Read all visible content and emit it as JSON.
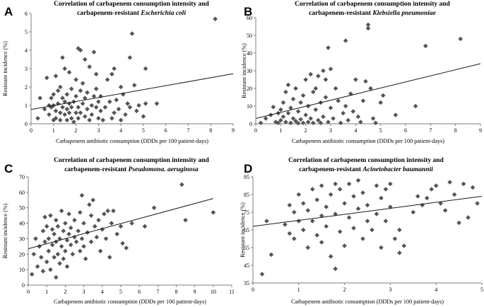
{
  "figure": {
    "colors": {
      "axis": "#7f7f7f",
      "marker": "#555555",
      "trend": "#1a1a1a"
    },
    "marker_shape": "diamond"
  },
  "chart_data": [
    {
      "panel": "A",
      "type": "scatter",
      "title_line1": "Correlation of carbapenem consumption intensity and",
      "title_line2_prefix": "carbapenem-resistant ",
      "title_line2_organism": "Escherichia coli",
      "xlabel": "Carbapenem antibiotic consumption (DDDs per 100 patient-days)",
      "ylabel": "Resistant incidence (%)",
      "xlim": [
        0,
        9
      ],
      "ylim": [
        0,
        6
      ],
      "xticks": [
        0,
        1,
        2,
        3,
        4,
        5,
        6,
        7,
        8,
        9
      ],
      "yticks": [
        0,
        1,
        2,
        3,
        4,
        5,
        6
      ],
      "trendline": [
        [
          0,
          0.78
        ],
        [
          9,
          2.72
        ]
      ],
      "points": [
        [
          0.3,
          0.3
        ],
        [
          0.4,
          1.4
        ],
        [
          0.6,
          0.8
        ],
        [
          0.7,
          2.5
        ],
        [
          0.8,
          1.0
        ],
        [
          0.8,
          0.5
        ],
        [
          0.9,
          1.4
        ],
        [
          0.9,
          0.9
        ],
        [
          1.0,
          0.2
        ],
        [
          1.0,
          1.0
        ],
        [
          1.0,
          1.6
        ],
        [
          1.1,
          0.7
        ],
        [
          1.1,
          2.6
        ],
        [
          1.1,
          0.3
        ],
        [
          1.2,
          1.8
        ],
        [
          1.2,
          1.1
        ],
        [
          1.3,
          0.6
        ],
        [
          1.3,
          2.0
        ],
        [
          1.3,
          0.2
        ],
        [
          1.4,
          3.6
        ],
        [
          1.4,
          1.4
        ],
        [
          1.4,
          0.9
        ],
        [
          1.5,
          0.5
        ],
        [
          1.5,
          1.2
        ],
        [
          1.5,
          3.0
        ],
        [
          1.6,
          0.2
        ],
        [
          1.6,
          0.8
        ],
        [
          1.6,
          1.6
        ],
        [
          1.7,
          2.8
        ],
        [
          1.7,
          0.6
        ],
        [
          1.7,
          1.1
        ],
        [
          1.8,
          0.3
        ],
        [
          1.8,
          1.9
        ],
        [
          1.8,
          0.9
        ],
        [
          1.9,
          1.2
        ],
        [
          1.9,
          0.1
        ],
        [
          2.0,
          0.6
        ],
        [
          2.0,
          1.5
        ],
        [
          2.0,
          2.4
        ],
        [
          2.1,
          4.1
        ],
        [
          2.1,
          0.9
        ],
        [
          2.1,
          0.3
        ],
        [
          2.2,
          1.8
        ],
        [
          2.2,
          4.0
        ],
        [
          2.2,
          0.6
        ],
        [
          2.3,
          1.1
        ],
        [
          2.3,
          2.2
        ],
        [
          2.4,
          0.4
        ],
        [
          2.4,
          3.5
        ],
        [
          2.4,
          1.4
        ],
        [
          2.5,
          0.8
        ],
        [
          2.5,
          1.7
        ],
        [
          2.6,
          0.2
        ],
        [
          2.6,
          3.1
        ],
        [
          2.7,
          1.0
        ],
        [
          2.7,
          0.5
        ],
        [
          2.8,
          1.5
        ],
        [
          2.8,
          3.9
        ],
        [
          2.9,
          0.9
        ],
        [
          2.9,
          2.7
        ],
        [
          2.9,
          1.9
        ],
        [
          3.0,
          0.3
        ],
        [
          3.0,
          1.2
        ],
        [
          3.1,
          0.7
        ],
        [
          3.1,
          1.5
        ],
        [
          3.2,
          0.2
        ],
        [
          3.3,
          0.9
        ],
        [
          3.4,
          2.4
        ],
        [
          3.5,
          1.2
        ],
        [
          3.6,
          0.3
        ],
        [
          3.6,
          2.7
        ],
        [
          3.7,
          0.6
        ],
        [
          3.7,
          3.0
        ],
        [
          3.8,
          1.3
        ],
        [
          3.9,
          0.8
        ],
        [
          4.0,
          2.0
        ],
        [
          4.0,
          0.2
        ],
        [
          4.1,
          1.6
        ],
        [
          4.2,
          0.5
        ],
        [
          4.3,
          1.1
        ],
        [
          4.4,
          3.6
        ],
        [
          4.4,
          0.9
        ],
        [
          4.5,
          4.9
        ],
        [
          4.6,
          2.1
        ],
        [
          4.7,
          0.7
        ],
        [
          4.8,
          1.0
        ],
        [
          5.0,
          0.4
        ],
        [
          5.1,
          1.1
        ],
        [
          5.1,
          3.0
        ],
        [
          5.6,
          1.1
        ],
        [
          8.2,
          5.7
        ]
      ]
    },
    {
      "panel": "B",
      "type": "scatter",
      "title_line1": "Correlation of carbapenem consumption intensity and",
      "title_line2_prefix": "carbapenem-resistant ",
      "title_line2_organism": "Klebsiella pneumoniae",
      "xlabel": "Carbapenem antibiotic consumption (DDDs per 100 patient-days)",
      "ylabel": "Resistant incidence (%)",
      "xlim": [
        0,
        9
      ],
      "ylim": [
        0,
        60
      ],
      "xticks": [
        0,
        1,
        2,
        3,
        4,
        5,
        6,
        7,
        8,
        9
      ],
      "yticks": [
        0,
        10,
        20,
        30,
        40,
        50,
        60
      ],
      "trendline": [
        [
          0,
          3.0
        ],
        [
          9,
          34.0
        ]
      ],
      "points": [
        [
          0.2,
          0.5
        ],
        [
          0.4,
          3.0
        ],
        [
          0.6,
          5.0
        ],
        [
          0.7,
          9.5
        ],
        [
          0.8,
          1.0
        ],
        [
          0.9,
          6.0
        ],
        [
          0.9,
          0.5
        ],
        [
          1.0,
          2.0
        ],
        [
          1.0,
          8.0
        ],
        [
          1.1,
          12.0
        ],
        [
          1.1,
          4.0
        ],
        [
          1.2,
          18.0
        ],
        [
          1.2,
          1.0
        ],
        [
          1.3,
          22.0
        ],
        [
          1.3,
          6.0
        ],
        [
          1.4,
          9.0
        ],
        [
          1.4,
          0.5
        ],
        [
          1.5,
          3.0
        ],
        [
          1.5,
          14.0
        ],
        [
          1.6,
          20.0
        ],
        [
          1.6,
          1.5
        ],
        [
          1.7,
          7.0
        ],
        [
          1.7,
          0.3
        ],
        [
          1.8,
          12.0
        ],
        [
          1.8,
          2.5
        ],
        [
          1.9,
          16.0
        ],
        [
          1.9,
          0.5
        ],
        [
          2.0,
          5.0
        ],
        [
          2.0,
          25.0
        ],
        [
          2.1,
          1.0
        ],
        [
          2.1,
          10.0
        ],
        [
          2.2,
          28.0
        ],
        [
          2.2,
          3.0
        ],
        [
          2.3,
          18.0
        ],
        [
          2.3,
          0.5
        ],
        [
          2.4,
          8.0
        ],
        [
          2.4,
          20.0
        ],
        [
          2.5,
          2.0
        ],
        [
          2.5,
          27.0
        ],
        [
          2.6,
          12.0
        ],
        [
          2.6,
          0.5
        ],
        [
          2.7,
          30.0
        ],
        [
          2.7,
          4.0
        ],
        [
          2.8,
          15.0
        ],
        [
          2.8,
          25.0
        ],
        [
          2.9,
          43.0
        ],
        [
          2.9,
          1.0
        ],
        [
          3.0,
          9.0
        ],
        [
          3.0,
          31.0
        ],
        [
          3.1,
          3.0
        ],
        [
          3.2,
          20.0
        ],
        [
          3.3,
          13.0
        ],
        [
          3.4,
          0.5
        ],
        [
          3.5,
          6.0
        ],
        [
          3.6,
          47.0
        ],
        [
          3.6,
          10.0
        ],
        [
          3.7,
          2.0
        ],
        [
          3.8,
          17.0
        ],
        [
          3.9,
          7.0
        ],
        [
          4.0,
          25.0
        ],
        [
          4.1,
          4.0
        ],
        [
          4.2,
          1.0
        ],
        [
          4.3,
          13.0
        ],
        [
          4.4,
          24.0
        ],
        [
          4.5,
          54.0
        ],
        [
          4.5,
          56.0
        ],
        [
          4.6,
          20.0
        ],
        [
          4.7,
          3.0
        ],
        [
          4.8,
          0.5
        ],
        [
          5.0,
          12.0
        ],
        [
          5.1,
          16.0
        ],
        [
          5.6,
          5.0
        ],
        [
          6.4,
          10.0
        ],
        [
          6.8,
          44.0
        ],
        [
          8.2,
          48.0
        ]
      ]
    },
    {
      "panel": "C",
      "type": "scatter",
      "title_line1": "Correlation of carbapenem consumption intensity and",
      "title_line2_prefix": "carbapenem-resistant ",
      "title_line2_organism": "Pseudomona. aeruginosa",
      "xlabel": "Carbapenem antibiotic consumption (DDDs per 100 patient-days)",
      "ylabel": "Resistant incidence (%)",
      "xlim": [
        0,
        11
      ],
      "ylim": [
        0,
        70
      ],
      "xticks": [
        0,
        1,
        2,
        3,
        4,
        5,
        6,
        7,
        8,
        9,
        10,
        11
      ],
      "yticks": [
        0,
        10,
        20,
        30,
        40,
        50,
        60,
        70
      ],
      "trendline": [
        [
          0,
          23.5
        ],
        [
          10,
          56.0
        ]
      ],
      "points": [
        [
          0.2,
          7.0
        ],
        [
          0.3,
          20.0
        ],
        [
          0.4,
          30.0
        ],
        [
          0.5,
          12.0
        ],
        [
          0.6,
          25.0
        ],
        [
          0.7,
          18.0
        ],
        [
          0.8,
          35.0
        ],
        [
          0.8,
          9.0
        ],
        [
          0.9,
          44.0
        ],
        [
          0.9,
          28.0
        ],
        [
          1.0,
          15.0
        ],
        [
          1.0,
          38.0
        ],
        [
          1.1,
          22.0
        ],
        [
          1.1,
          30.0
        ],
        [
          1.2,
          10.0
        ],
        [
          1.2,
          45.0
        ],
        [
          1.3,
          26.0
        ],
        [
          1.3,
          36.0
        ],
        [
          1.4,
          18.0
        ],
        [
          1.4,
          33.0
        ],
        [
          1.5,
          5.0
        ],
        [
          1.5,
          28.0
        ],
        [
          1.5,
          42.0
        ],
        [
          1.6,
          20.0
        ],
        [
          1.6,
          38.0
        ],
        [
          1.7,
          14.0
        ],
        [
          1.7,
          30.0
        ],
        [
          1.8,
          25.0
        ],
        [
          1.8,
          48.0
        ],
        [
          1.9,
          17.0
        ],
        [
          1.9,
          35.0
        ],
        [
          2.0,
          22.0
        ],
        [
          2.0,
          40.0
        ],
        [
          2.1,
          29.0
        ],
        [
          2.1,
          12.0
        ],
        [
          2.2,
          33.0
        ],
        [
          2.2,
          46.0
        ],
        [
          2.3,
          26.0
        ],
        [
          2.3,
          37.0
        ],
        [
          2.4,
          20.0
        ],
        [
          2.5,
          31.0
        ],
        [
          2.5,
          42.0
        ],
        [
          2.6,
          28.0
        ],
        [
          2.7,
          35.0
        ],
        [
          2.8,
          22.0
        ],
        [
          2.8,
          47.0
        ],
        [
          2.9,
          58.0
        ],
        [
          2.9,
          30.0
        ],
        [
          3.0,
          25.0
        ],
        [
          3.0,
          40.0
        ],
        [
          3.1,
          17.0
        ],
        [
          3.2,
          34.0
        ],
        [
          3.3,
          52.0
        ],
        [
          3.4,
          45.0
        ],
        [
          3.4,
          28.0
        ],
        [
          3.5,
          55.0
        ],
        [
          3.6,
          38.0
        ],
        [
          3.7,
          31.0
        ],
        [
          3.8,
          42.0
        ],
        [
          3.9,
          22.0
        ],
        [
          4.0,
          36.0
        ],
        [
          4.1,
          46.0
        ],
        [
          4.2,
          30.0
        ],
        [
          4.3,
          48.0
        ],
        [
          4.4,
          18.0
        ],
        [
          4.5,
          40.0
        ],
        [
          4.6,
          48.0
        ],
        [
          4.8,
          33.0
        ],
        [
          5.0,
          38.0
        ],
        [
          5.1,
          27.0
        ],
        [
          5.3,
          24.0
        ],
        [
          5.6,
          40.0
        ],
        [
          6.3,
          38.0
        ],
        [
          6.8,
          50.0
        ],
        [
          8.3,
          65.0
        ],
        [
          8.5,
          42.0
        ],
        [
          10.0,
          47.0
        ]
      ]
    },
    {
      "panel": "D",
      "type": "scatter",
      "title_line1": "Correlation of carbapenem consumption intensity and",
      "title_line2_prefix": "carbapenem-resistant ",
      "title_line2_organism": "Acinetobacter baumannii",
      "xlabel": "Carbapenem antibiotic consumption (DDDs per 100 patient-days)",
      "ylabel": "Resistant incidence (%)",
      "xlim": [
        0,
        5
      ],
      "ylim": [
        35,
        95
      ],
      "xticks": [
        0,
        1,
        2,
        3,
        4,
        5
      ],
      "yticks": [
        35,
        45,
        55,
        65,
        75,
        85,
        95
      ],
      "trendline": [
        [
          0,
          67.0
        ],
        [
          5,
          84.0
        ]
      ],
      "points": [
        [
          0.2,
          40.0
        ],
        [
          0.3,
          70.0
        ],
        [
          0.4,
          51.0
        ],
        [
          0.7,
          68.0
        ],
        [
          0.8,
          63.0
        ],
        [
          0.8,
          79.0
        ],
        [
          0.9,
          75.0
        ],
        [
          0.9,
          60.0
        ],
        [
          1.0,
          70.0
        ],
        [
          1.0,
          85.0
        ],
        [
          1.1,
          65.0
        ],
        [
          1.1,
          80.0
        ],
        [
          1.2,
          55.0
        ],
        [
          1.2,
          76.0
        ],
        [
          1.3,
          88.0
        ],
        [
          1.3,
          70.0
        ],
        [
          1.4,
          62.0
        ],
        [
          1.4,
          82.0
        ],
        [
          1.5,
          73.0
        ],
        [
          1.5,
          90.0
        ],
        [
          1.5,
          58.0
        ],
        [
          1.6,
          78.0
        ],
        [
          1.6,
          67.0
        ],
        [
          1.7,
          85.0
        ],
        [
          1.7,
          50.0
        ],
        [
          1.8,
          91.0
        ],
        [
          1.8,
          74.0
        ],
        [
          1.8,
          43.0
        ],
        [
          1.9,
          64.0
        ],
        [
          1.9,
          88.0
        ],
        [
          2.0,
          80.0
        ],
        [
          2.0,
          56.0
        ],
        [
          2.1,
          72.0
        ],
        [
          2.1,
          91.0
        ],
        [
          2.2,
          66.0
        ],
        [
          2.2,
          84.0
        ],
        [
          2.3,
          77.0
        ],
        [
          2.3,
          93.0
        ],
        [
          2.4,
          60.0
        ],
        [
          2.4,
          86.0
        ],
        [
          2.5,
          70.0
        ],
        [
          2.5,
          79.0
        ],
        [
          2.6,
          65.0
        ],
        [
          2.7,
          90.0
        ],
        [
          2.7,
          74.0
        ],
        [
          2.8,
          55.0
        ],
        [
          2.8,
          83.0
        ],
        [
          2.9,
          70.0
        ],
        [
          2.9,
          88.0
        ],
        [
          3.0,
          78.0
        ],
        [
          3.0,
          91.0
        ],
        [
          3.1,
          60.0
        ],
        [
          3.2,
          65.0
        ],
        [
          3.2,
          52.0
        ],
        [
          3.3,
          56.0
        ],
        [
          3.5,
          75.0
        ],
        [
          3.6,
          84.0
        ],
        [
          3.7,
          79.0
        ],
        [
          3.8,
          83.0
        ],
        [
          3.9,
          88.0
        ],
        [
          4.0,
          90.0
        ],
        [
          4.1,
          80.0
        ],
        [
          4.2,
          76.0
        ],
        [
          4.3,
          92.0
        ],
        [
          4.4,
          85.0
        ],
        [
          4.5,
          69.0
        ],
        [
          4.6,
          91.0
        ],
        [
          4.7,
          72.0
        ],
        [
          4.8,
          89.0
        ],
        [
          4.9,
          80.0
        ]
      ]
    }
  ]
}
